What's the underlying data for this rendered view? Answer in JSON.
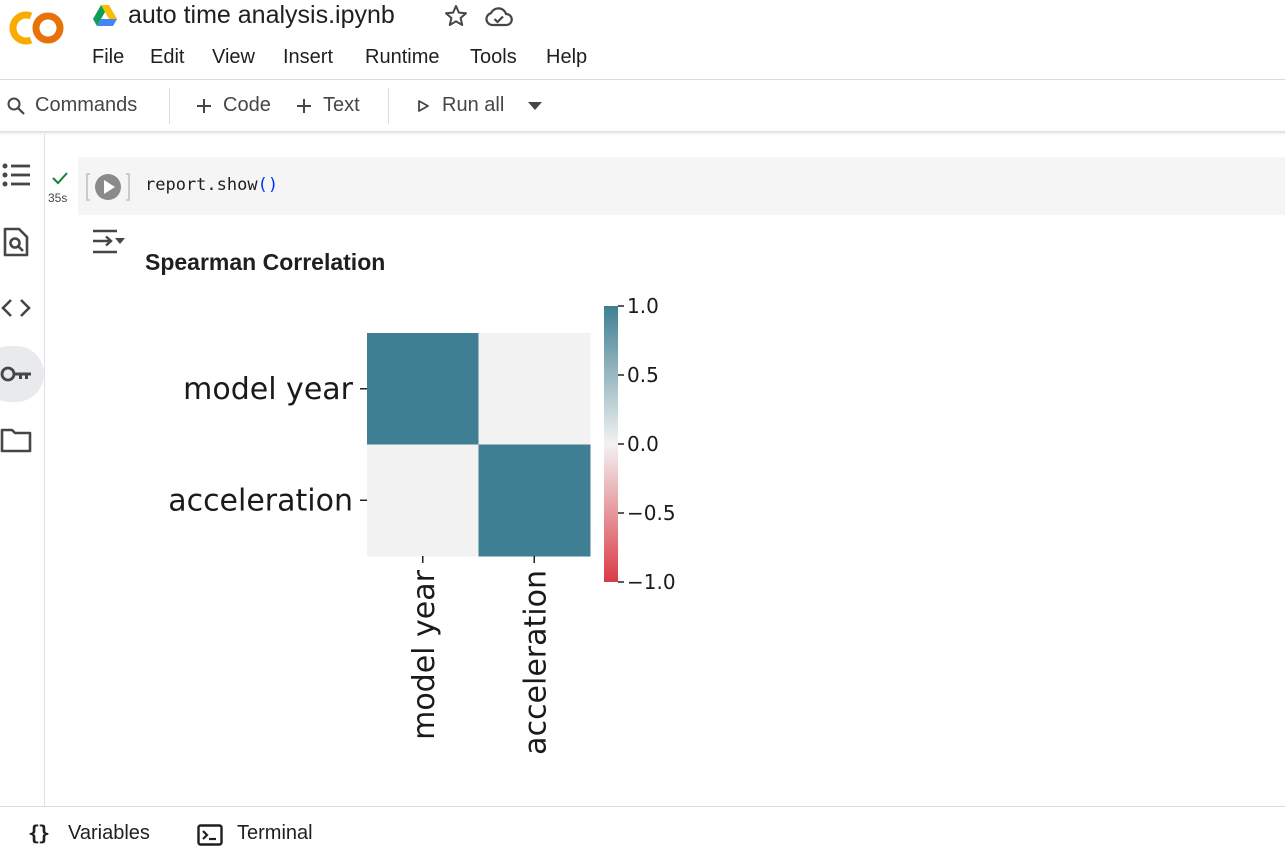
{
  "header": {
    "logo_text": "CO",
    "title": "auto time analysis.ipynb",
    "menu": [
      "File",
      "Edit",
      "View",
      "Insert",
      "Runtime",
      "Tools",
      "Help"
    ]
  },
  "toolbar": {
    "commands": "Commands",
    "code": "Code",
    "text": "Text",
    "run_all": "Run all"
  },
  "sidebar": {
    "icons": [
      "table-of-contents-icon",
      "find-replace-icon",
      "code-snippets-icon",
      "secrets-key-icon",
      "files-folder-icon"
    ]
  },
  "cell": {
    "exec_time": "35s",
    "code_prefix": "report.show",
    "code_parens": "()",
    "output_title": "Spearman Correlation"
  },
  "chart_data": {
    "type": "heatmap",
    "title": "",
    "x_labels": [
      "model year",
      "acceleration"
    ],
    "y_labels": [
      "model year",
      "acceleration"
    ],
    "values": [
      [
        1.0,
        0.0
      ],
      [
        0.0,
        1.0
      ]
    ],
    "colorbar": {
      "range": [
        -1.0,
        1.0
      ],
      "ticks": [
        1.0,
        0.5,
        0.0,
        -0.5,
        -1.0
      ],
      "tick_labels": [
        "1.0",
        "0.5",
        "0.0",
        "−0.5",
        "−1.0"
      ],
      "colors": {
        "high": "#3f7f93",
        "mid": "#f2f2f2",
        "low": "#da3b46"
      }
    }
  },
  "bottom": {
    "variables": "Variables",
    "terminal": "Terminal"
  }
}
